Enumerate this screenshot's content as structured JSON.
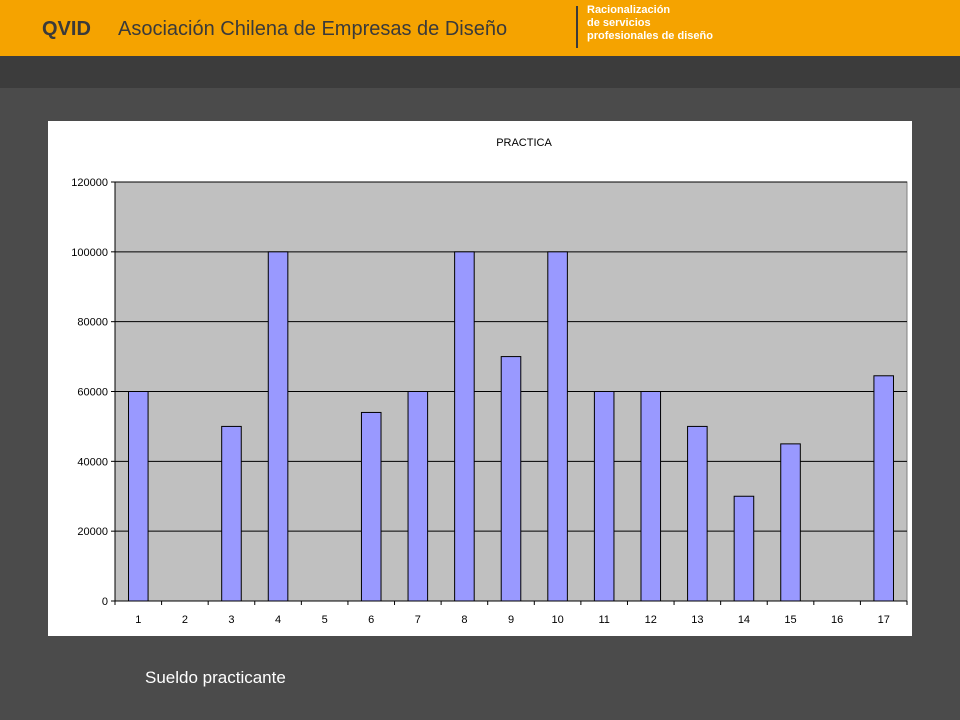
{
  "header": {
    "brand": "QVID",
    "organization": "Asociación Chilena de Empresas de Diseño",
    "tagline": [
      "Racionalización",
      "de servicios",
      "profesionales de diseño"
    ],
    "color": "#f5a300"
  },
  "caption": "Sueldo practicante",
  "chart_data": {
    "type": "bar",
    "title": "PRACTICA",
    "xlabel": "",
    "ylabel": "",
    "categories": [
      "1",
      "2",
      "3",
      "4",
      "5",
      "6",
      "7",
      "8",
      "9",
      "10",
      "11",
      "12",
      "13",
      "14",
      "15",
      "16",
      "17"
    ],
    "values": [
      60000,
      0,
      50000,
      100000,
      0,
      54000,
      60000,
      100000,
      70000,
      100000,
      60000,
      60000,
      50000,
      30000,
      45000,
      0,
      64500
    ],
    "ylim": [
      0,
      120000
    ],
    "yticks": [
      0,
      20000,
      40000,
      60000,
      80000,
      100000,
      120000
    ],
    "grid": true,
    "legend": "none",
    "bar_color": "#9999ff",
    "plot_background": "#c0c0c0"
  }
}
